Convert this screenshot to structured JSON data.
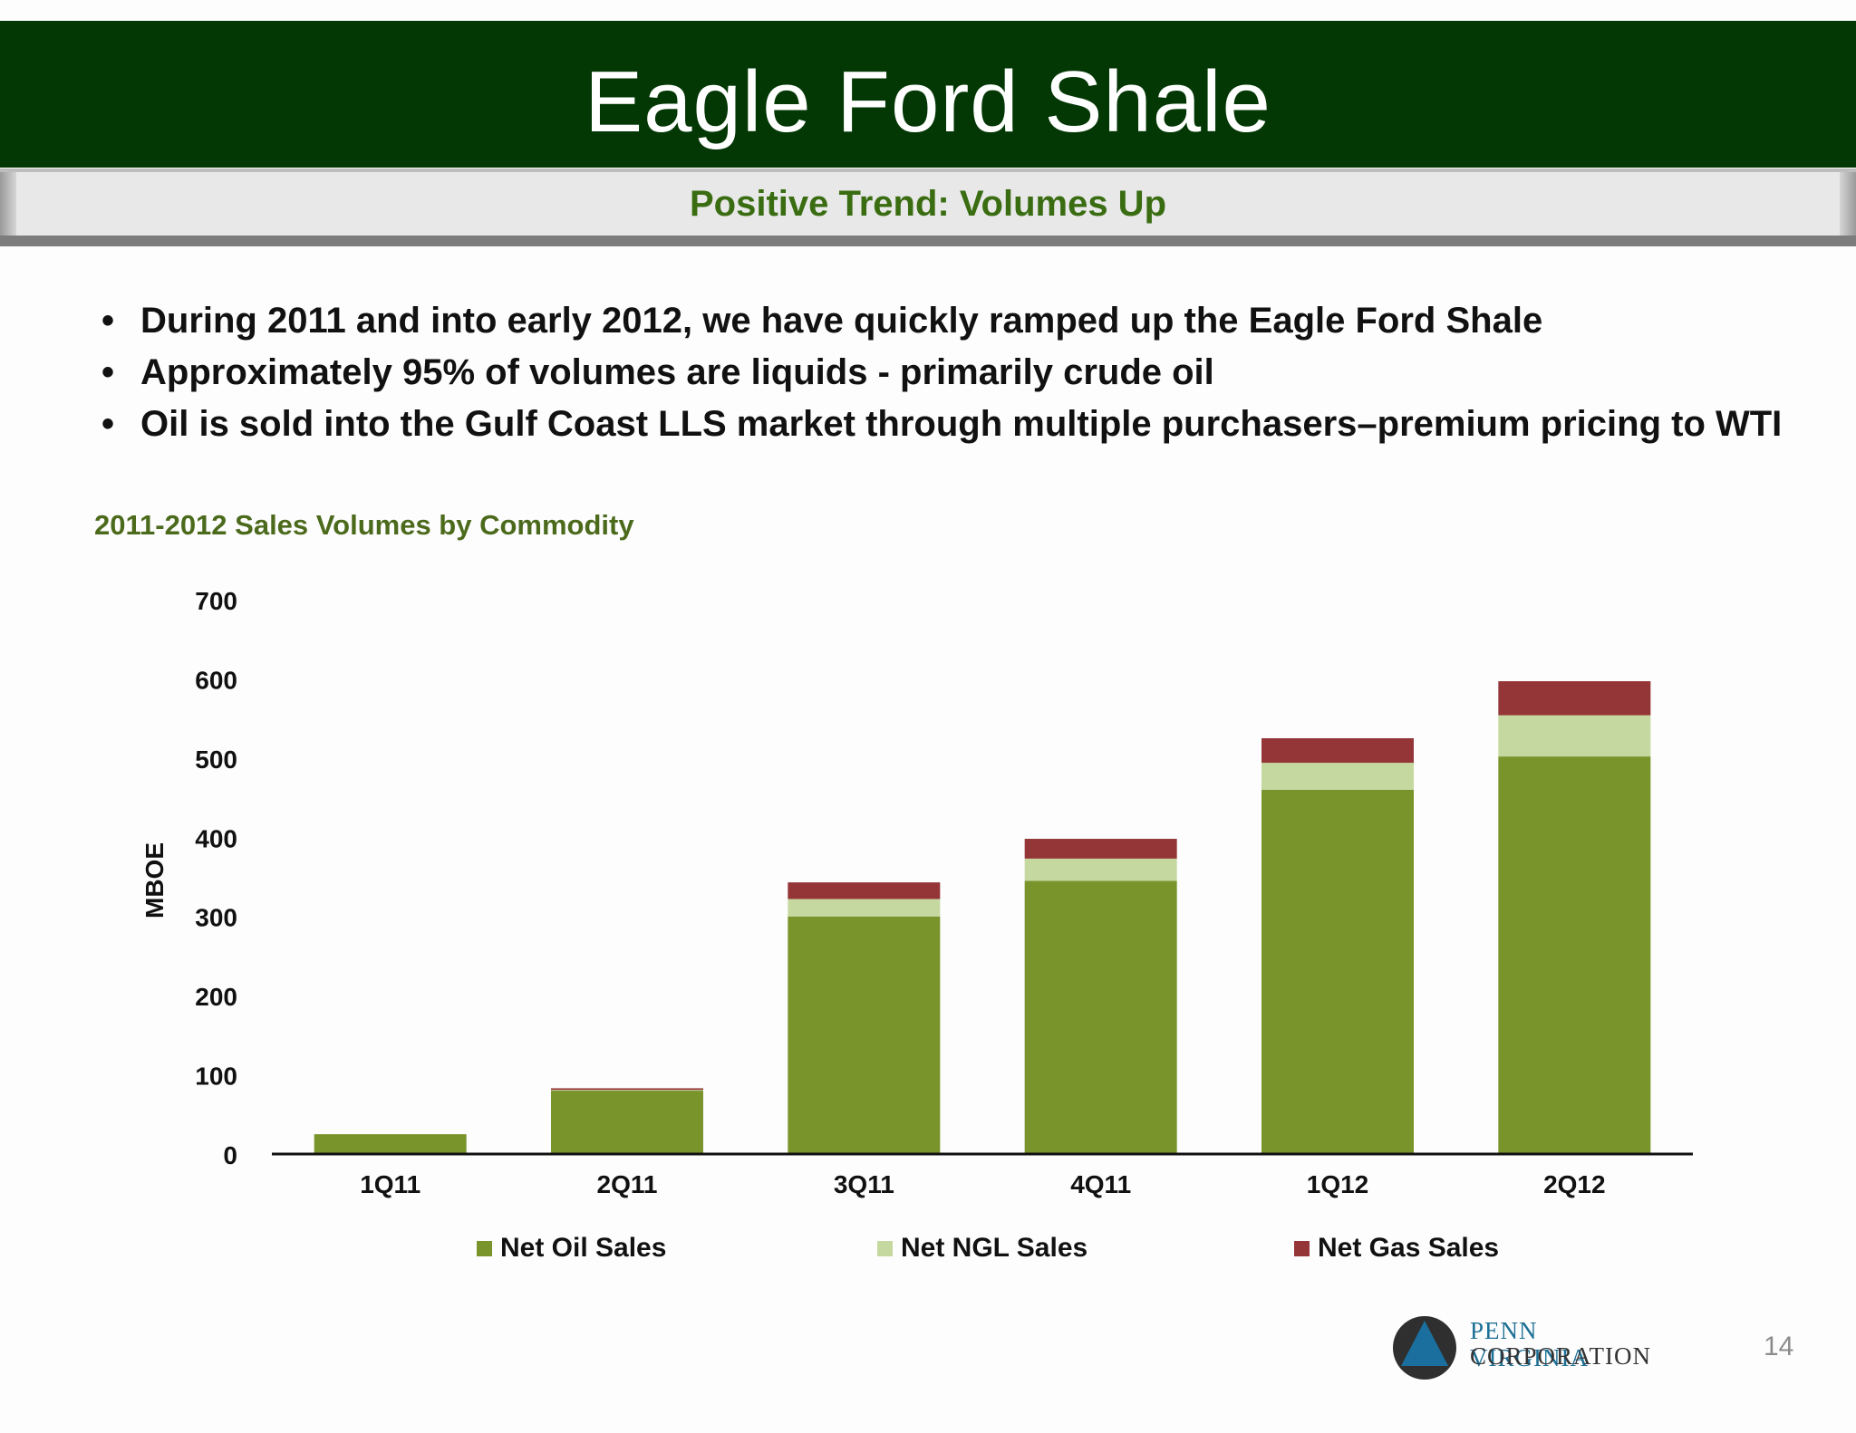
{
  "slide": {
    "title": "Eagle Ford Shale",
    "subtitle": "Positive Trend: Volumes Up",
    "bullets": [
      "During 2011 and into early 2012, we have quickly ramped up the Eagle Ford Shale",
      "Approximately 95% of volumes are liquids -  primarily crude oil",
      "Oil is sold into the Gulf Coast LLS market through multiple purchasers–premium pricing to WTI"
    ],
    "bullet_symbol": "•",
    "chart_caption": "2011-2012 Sales Volumes by Commodity",
    "logo": {
      "line1": "PENN VIRGINIA",
      "line2": "CORPORATION"
    },
    "page_number": "14"
  },
  "colors": {
    "title_band": "#033805",
    "subtitle_text": "#3a6d12",
    "oil": "#78942b",
    "ngl": "#c5d8a0",
    "gas": "#943637",
    "axis": "#111111"
  },
  "chart_data": {
    "type": "bar",
    "stacked": true,
    "title": "2011-2012 Sales Volumes by Commodity",
    "xlabel": "",
    "ylabel": "MBOE",
    "ylim": [
      0,
      700
    ],
    "yticks": [
      0,
      100,
      200,
      300,
      400,
      500,
      600,
      700
    ],
    "categories": [
      "1Q11",
      "2Q11",
      "3Q11",
      "4Q11",
      "1Q12",
      "2Q12"
    ],
    "series": [
      {
        "name": "Net Oil Sales",
        "color": "#78942b",
        "values": [
          25,
          80,
          300,
          345,
          460,
          502
        ]
      },
      {
        "name": "Net NGL Sales",
        "color": "#c5d8a0",
        "values": [
          0,
          1,
          22,
          28,
          34,
          52
        ]
      },
      {
        "name": "Net Gas Sales",
        "color": "#943637",
        "values": [
          0,
          2,
          21,
          25,
          31,
          43
        ]
      }
    ],
    "grid": false,
    "legend_position": "bottom"
  }
}
